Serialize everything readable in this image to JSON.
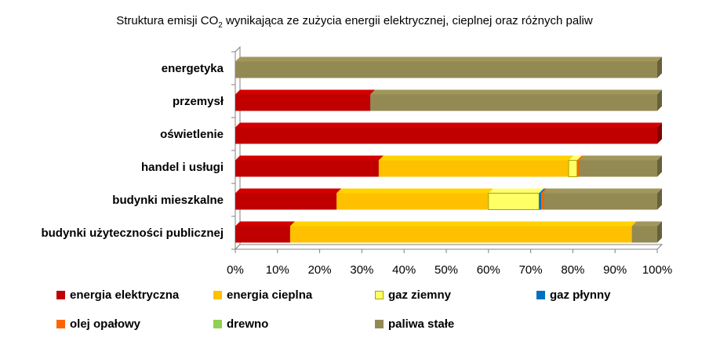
{
  "chart_data": {
    "type": "bar",
    "orientation": "horizontal",
    "stacked": "percent",
    "title_prefix": "Struktura emisji CO",
    "title_sub": "2",
    "title_suffix": " wynikająca ze zużycia energii elektrycznej, cieplnej oraz różnych paliw",
    "categories": [
      "budynki użyteczności publicznej",
      "budynki mieszkalne",
      "handel i usługi",
      "oświetlenie",
      "przemysł",
      "energetyka"
    ],
    "xlim": [
      0,
      100
    ],
    "x_tick_labels": [
      "0%",
      "10%",
      "20%",
      "30%",
      "40%",
      "50%",
      "60%",
      "70%",
      "80%",
      "90%",
      "100%"
    ],
    "legend_position": "bottom",
    "grid": false,
    "series": [
      {
        "name": "energia elektryczna",
        "color": "#c00000",
        "values": [
          13,
          24,
          34,
          100,
          32,
          0
        ]
      },
      {
        "name": "energia cieplna",
        "color": "#ffc000",
        "values": [
          81,
          36,
          45,
          0,
          0,
          0
        ]
      },
      {
        "name": "gaz ziemny",
        "color": "#ffff66",
        "values": [
          0,
          12,
          2,
          0,
          0,
          0
        ]
      },
      {
        "name": "gaz płynny",
        "color": "#0070c0",
        "values": [
          0,
          0.5,
          0,
          0,
          0,
          0
        ]
      },
      {
        "name": "olej opałowy",
        "color": "#ff6600",
        "values": [
          0,
          0.5,
          0.5,
          0,
          0,
          0
        ]
      },
      {
        "name": "drewno",
        "color": "#92d050",
        "values": [
          0,
          0,
          0,
          0,
          0,
          0
        ]
      },
      {
        "name": "paliwa stałe",
        "color": "#938953",
        "values": [
          6,
          27,
          18.5,
          0,
          68,
          100
        ]
      }
    ]
  }
}
